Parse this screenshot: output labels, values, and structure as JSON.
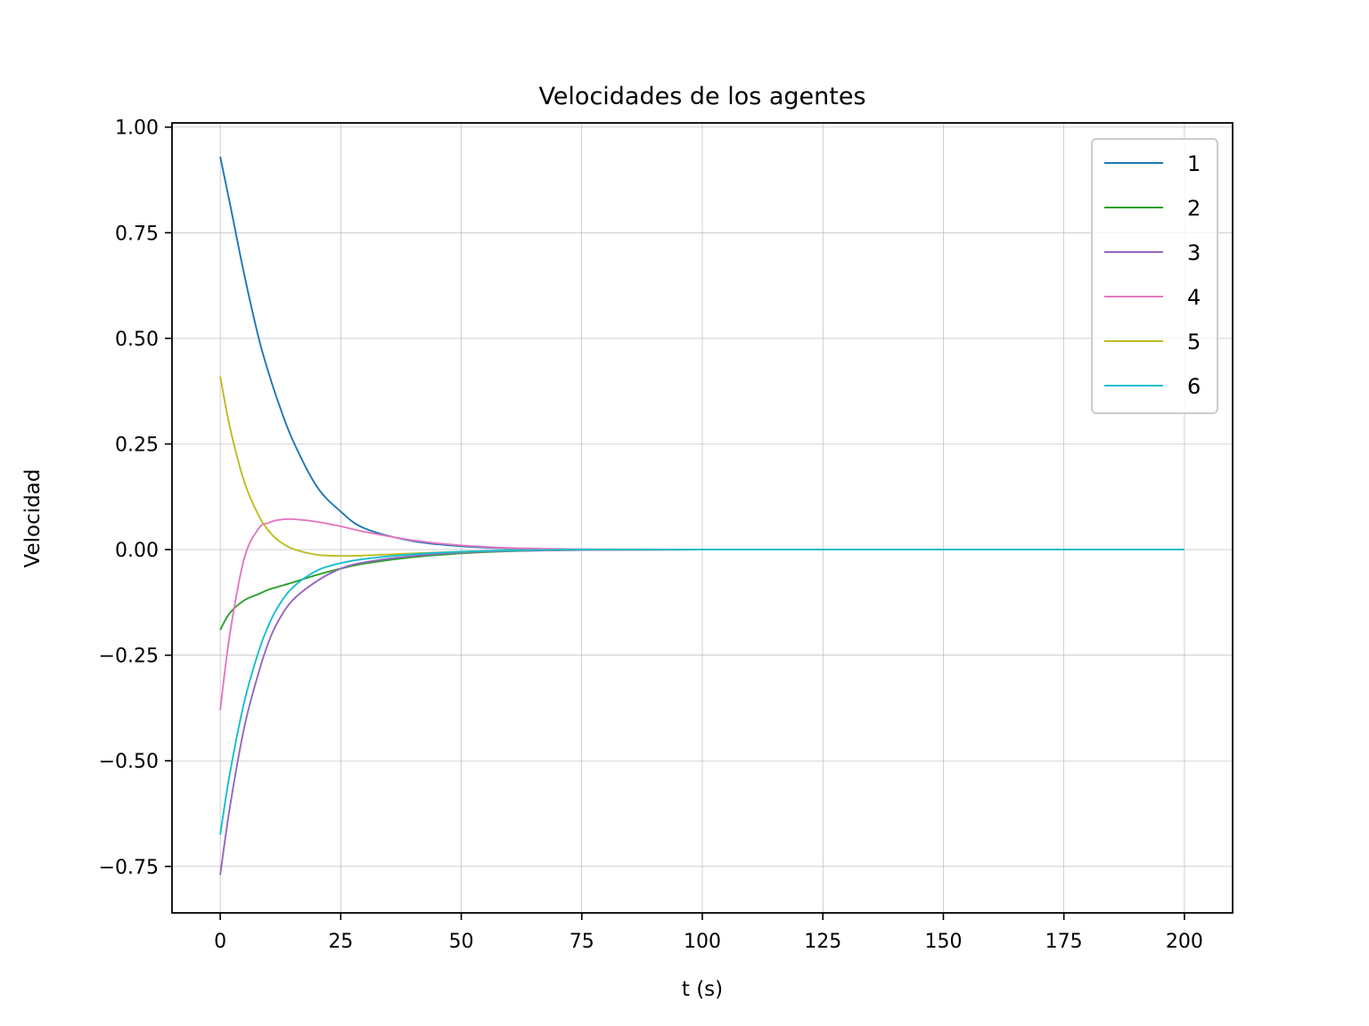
{
  "chart_data": {
    "type": "line",
    "title": "Velocidades de los agentes",
    "xlabel": "t (s)",
    "ylabel": "Velocidad",
    "xlim": [
      -10,
      210
    ],
    "ylim": [
      -0.86,
      1.01
    ],
    "xticks": [
      0,
      25,
      50,
      75,
      100,
      125,
      150,
      175,
      200
    ],
    "xtick_labels": [
      "0",
      "25",
      "50",
      "75",
      "100",
      "125",
      "150",
      "175",
      "200"
    ],
    "yticks": [
      1.0,
      0.75,
      0.5,
      0.25,
      0.0,
      -0.25,
      -0.5,
      -0.75
    ],
    "ytick_labels": [
      "1.00",
      "0.75",
      "0.50",
      "0.25",
      "0.00",
      "−0.25",
      "−0.50",
      "−0.75"
    ],
    "grid": true,
    "legend_position": "upper-right",
    "x": [
      0,
      2,
      5,
      8,
      10,
      12,
      15,
      20,
      25,
      30,
      40,
      50,
      60,
      75,
      100,
      150,
      200
    ],
    "series": [
      {
        "name": "1",
        "color": "#1f77b4",
        "values": [
          0.93,
          0.82,
          0.65,
          0.5,
          0.42,
          0.35,
          0.26,
          0.15,
          0.09,
          0.05,
          0.02,
          0.008,
          0.003,
          0.0,
          0.0,
          0.0,
          0.0
        ]
      },
      {
        "name": "2",
        "color": "#2ca02c",
        "values": [
          -0.19,
          -0.15,
          -0.12,
          -0.105,
          -0.095,
          -0.088,
          -0.078,
          -0.06,
          -0.045,
          -0.033,
          -0.018,
          -0.009,
          -0.004,
          -0.001,
          0.0,
          0.0,
          0.0
        ]
      },
      {
        "name": "3",
        "color": "#9467bd",
        "values": [
          -0.77,
          -0.61,
          -0.42,
          -0.29,
          -0.22,
          -0.17,
          -0.12,
          -0.075,
          -0.045,
          -0.03,
          -0.015,
          -0.007,
          -0.003,
          -0.001,
          0.0,
          0.0,
          0.0
        ]
      },
      {
        "name": "4",
        "color": "#e377c2",
        "values": [
          -0.38,
          -0.2,
          -0.02,
          0.05,
          0.063,
          0.07,
          0.072,
          0.066,
          0.055,
          0.042,
          0.022,
          0.01,
          0.004,
          0.001,
          0.0,
          0.0,
          0.0
        ]
      },
      {
        "name": "5",
        "color": "#bcbd22",
        "values": [
          0.41,
          0.29,
          0.16,
          0.08,
          0.045,
          0.022,
          0.002,
          -0.012,
          -0.015,
          -0.014,
          -0.009,
          -0.005,
          -0.002,
          0.0,
          0.0,
          0.0,
          0.0
        ]
      },
      {
        "name": "6",
        "color": "#17becf",
        "values": [
          -0.675,
          -0.53,
          -0.36,
          -0.24,
          -0.18,
          -0.135,
          -0.09,
          -0.05,
          -0.032,
          -0.022,
          -0.011,
          -0.005,
          -0.002,
          0.0,
          0.0,
          0.0,
          0.0
        ]
      }
    ]
  }
}
